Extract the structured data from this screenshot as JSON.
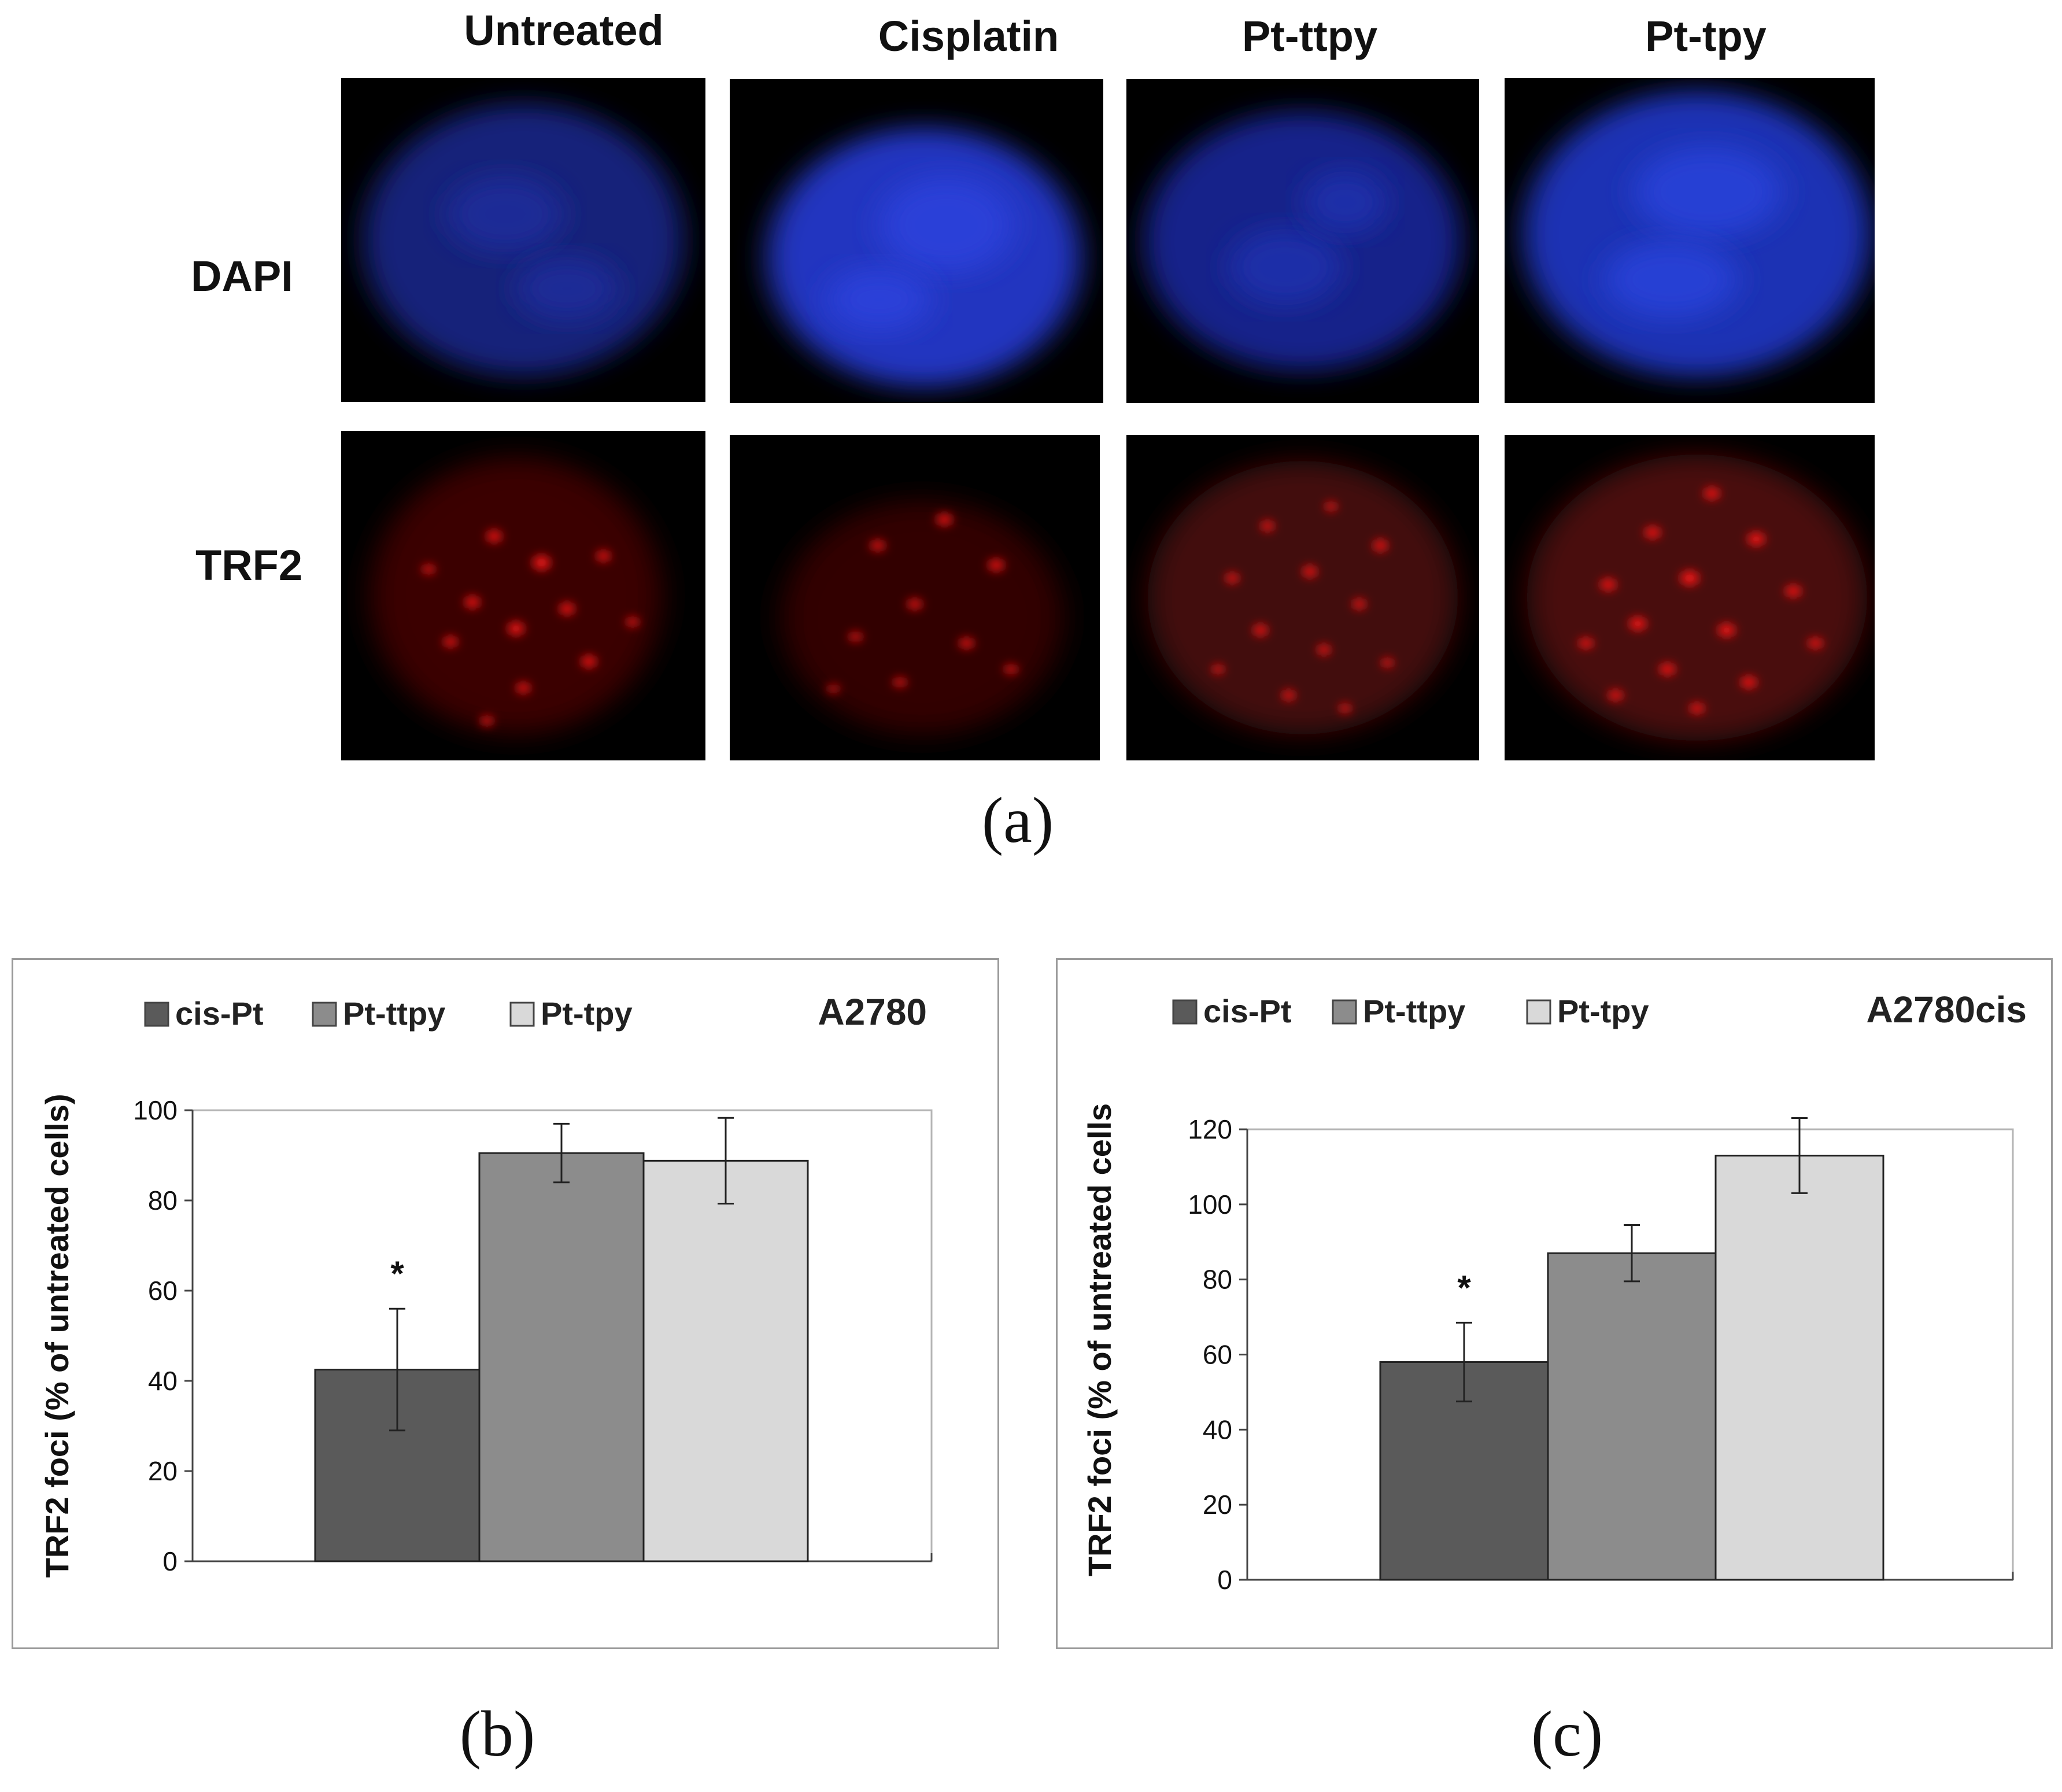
{
  "panel_a": {
    "columns": [
      "Untreated",
      "Cisplatin",
      "Pt-ttpy",
      "Pt-tpy"
    ],
    "rows": [
      "DAPI",
      "TRF2"
    ],
    "caption": "(a)",
    "stain_colors": {
      "DAPI": "#1a2fd6",
      "TRF2": "#e01010"
    }
  },
  "panel_b": {
    "caption": "(b)"
  },
  "panel_c": {
    "caption": "(c)"
  },
  "chart_data": [
    {
      "type": "bar",
      "title": "A2780",
      "ylabel": "TRF2 foci (% of untreated cells)",
      "xlabel": "",
      "categories": [
        "cis-Pt",
        "Pt-ttpy",
        "Pt-tpy"
      ],
      "values": [
        42.5,
        90.5,
        88.8
      ],
      "errors": [
        13.5,
        6.5,
        9.5
      ],
      "annotations": [
        "*",
        "",
        ""
      ],
      "colors": [
        "#5a5a5a",
        "#8c8c8c",
        "#d9d9d9"
      ],
      "legend": [
        "cis-Pt",
        "Pt-ttpy",
        "Pt-tpy"
      ],
      "legend_position": "top",
      "ylim": [
        0,
        100
      ],
      "yticks": [
        0,
        20,
        40,
        60,
        80,
        100
      ],
      "grid": false
    },
    {
      "type": "bar",
      "title": "A2780cis",
      "ylabel": "TRF2 foci (% of untreated cells",
      "xlabel": "",
      "categories": [
        "cis-Pt",
        "Pt-ttpy",
        "Pt-tpy"
      ],
      "values": [
        58,
        87,
        113
      ],
      "errors": [
        10.5,
        7.5,
        10
      ],
      "annotations": [
        "*",
        "",
        ""
      ],
      "colors": [
        "#5a5a5a",
        "#8c8c8c",
        "#d9d9d9"
      ],
      "legend": [
        "cis-Pt",
        "Pt-ttpy",
        "Pt-tpy"
      ],
      "legend_position": "top",
      "ylim": [
        0,
        120
      ],
      "yticks": [
        0,
        20,
        40,
        60,
        80,
        100,
        120
      ],
      "grid": false
    }
  ]
}
